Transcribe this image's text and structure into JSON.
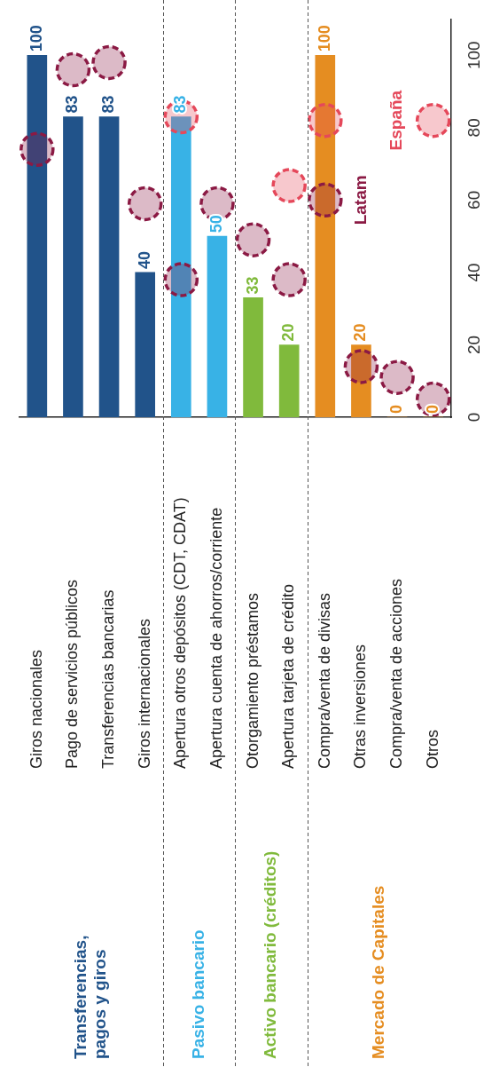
{
  "chart_data": {
    "type": "bar",
    "categories": [
      "Giros nacionales",
      "Pago de servicios públicos",
      "Transferencias bancarias",
      "Giros internacionales",
      "Apertura otros depósitos (CDT, CDAT)",
      "Apertura cuenta de ahorros/corriente",
      "Otorgamiento préstamos",
      "Apertura tarjeta de crédito",
      "Compra/venta de divisas",
      "Otras inversiones",
      "Compra/venta de acciones",
      "Otros"
    ],
    "series": [
      {
        "values": [
          100,
          83,
          83,
          40,
          83,
          50,
          33,
          20,
          100,
          20,
          0,
          0
        ],
        "value_labels": [
          "100",
          "83",
          "83",
          "40",
          "83",
          "50",
          "33",
          "20",
          "100",
          "20",
          "0",
          "0"
        ],
        "colors": [
          "#21538a",
          "#21538a",
          "#21538a",
          "#21538a",
          "#38b2e6",
          "#38b2e6",
          "#80ba3c",
          "#80ba3c",
          "#e58d21",
          "#e58d21",
          "#e58d21",
          "#e58d21"
        ]
      },
      {
        "type": "scatter",
        "name": "Latam",
        "color": "#8b1a44",
        "marker": "circle",
        "values": [
          74,
          96,
          98,
          59,
          38,
          59,
          49,
          38,
          60,
          14,
          11,
          5
        ]
      },
      {
        "type": "scatter",
        "name": "España",
        "color": "#e5485a",
        "marker": "circle",
        "values": [
          null,
          null,
          null,
          null,
          83,
          null,
          null,
          64,
          82,
          null,
          null,
          82
        ]
      }
    ],
    "ylim": [
      0,
      110
    ],
    "yticks": [
      0,
      20,
      40,
      60,
      80,
      100
    ],
    "grid": false,
    "legend": false,
    "annotations": [
      "Transferencias,\npagos y giros",
      "Pasivo bancario",
      "Activo bancario (créditos)",
      "Mercado de Capitales"
    ]
  }
}
